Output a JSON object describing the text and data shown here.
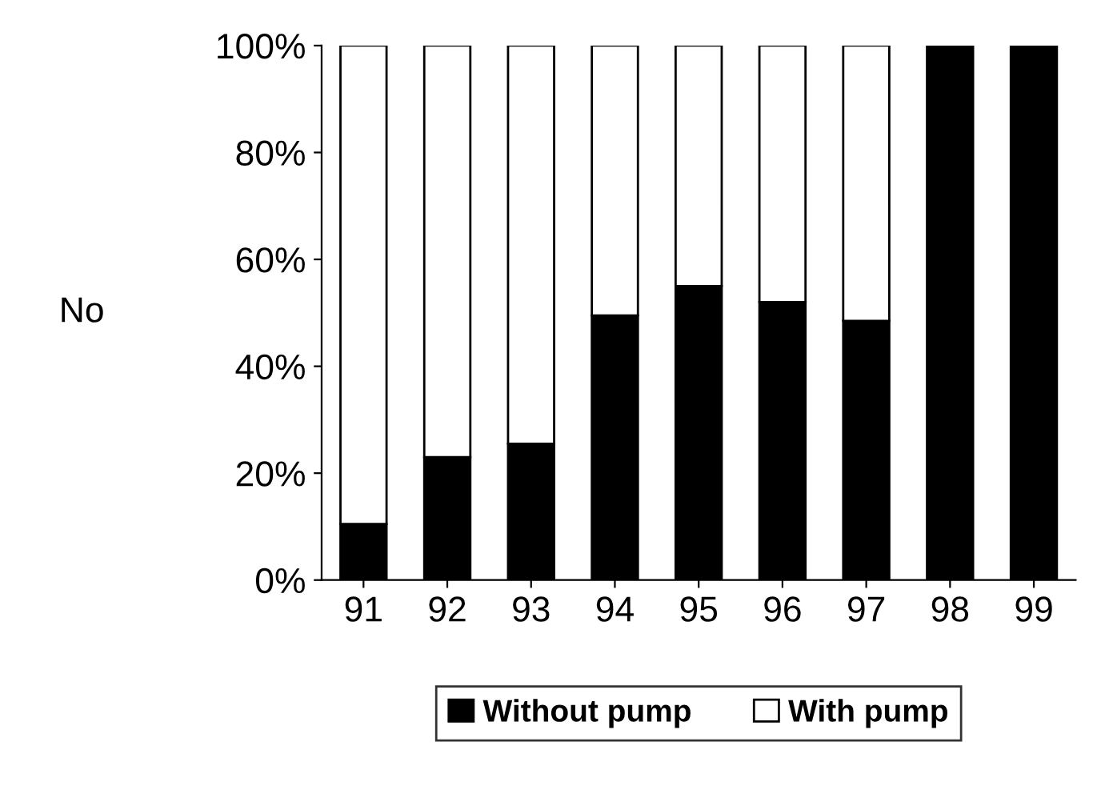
{
  "chart_data": {
    "type": "bar",
    "stacked": true,
    "ylabel": "No",
    "categories": [
      "91",
      "92",
      "93",
      "94",
      "95",
      "96",
      "97",
      "98",
      "99"
    ],
    "series": [
      {
        "name": "Without pump",
        "color": "#000000",
        "values": [
          10.5,
          23,
          25.5,
          49.5,
          55,
          52,
          48.5,
          100,
          100
        ]
      },
      {
        "name": "With pump",
        "color": "#ffffff",
        "values": [
          89.5,
          77,
          74.5,
          50.5,
          45,
          48,
          51.5,
          null,
          null
        ]
      }
    ],
    "ylim": [
      0,
      100
    ],
    "yticks": [
      {
        "value": 0,
        "label": "0%"
      },
      {
        "value": 20,
        "label": "20%"
      },
      {
        "value": 40,
        "label": "40%"
      },
      {
        "value": 60,
        "label": "60%"
      },
      {
        "value": 80,
        "label": "80%"
      },
      {
        "value": 100,
        "label": "100%"
      }
    ],
    "grid": false,
    "legend": "bottom"
  }
}
